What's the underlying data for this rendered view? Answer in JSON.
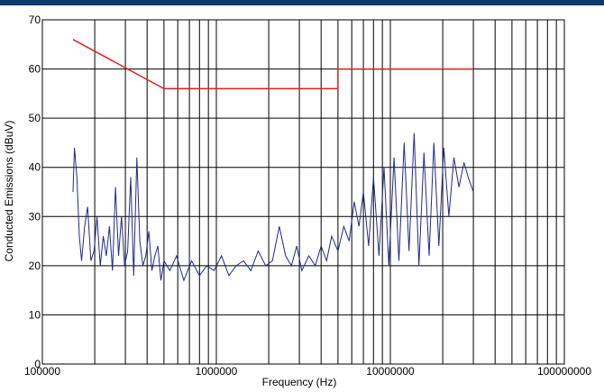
{
  "chart_data": {
    "type": "line",
    "title": "",
    "xlabel": "Frequency (Hz)",
    "ylabel": "Conducted Emissions (dBuV)",
    "x_scale": "log",
    "xlim": [
      100000,
      100000000
    ],
    "ylim": [
      0,
      70
    ],
    "grid": true,
    "x_tick_labels": [
      "100000",
      "1000000",
      "10000000",
      "100000000"
    ],
    "y_tick_labels": [
      "0",
      "10",
      "20",
      "30",
      "40",
      "50",
      "60",
      "70"
    ],
    "y_ticks": [
      0,
      10,
      20,
      30,
      40,
      50,
      60,
      70
    ],
    "colors": {
      "limit": "#e02020",
      "emissions": "#1f2a8a",
      "grid": "#000000",
      "header": "#0d3a6e"
    },
    "series": [
      {
        "name": "",
        "role": "limit",
        "x": [
          150000,
          500000,
          500000,
          5000000,
          5000000,
          30000000
        ],
        "y": [
          66,
          56,
          56,
          56,
          60,
          60
        ]
      },
      {
        "name": "",
        "role": "emissions",
        "x": [
          150000,
          153000,
          158000,
          163000,
          168000,
          175000,
          182000,
          190000,
          198000,
          206000,
          215000,
          224000,
          233000,
          243000,
          253000,
          263000,
          274000,
          285000,
          297000,
          309000,
          322000,
          335000,
          349000,
          363000,
          378000,
          393000,
          409000,
          426000,
          443000,
          461000,
          480000,
          500000,
          540000,
          590000,
          650000,
          720000,
          800000,
          880000,
          970000,
          1070000,
          1180000,
          1300000,
          1430000,
          1580000,
          1740000,
          1920000,
          2100000,
          2300000,
          2500000,
          2700000,
          2900000,
          3100000,
          3400000,
          3700000,
          4000000,
          4300000,
          4600000,
          5000000,
          5400000,
          5800000,
          6200000,
          6600000,
          7000000,
          7500000,
          8000000,
          8600000,
          9200000,
          9800000,
          10500000,
          11200000,
          12000000,
          12800000,
          13700000,
          14600000,
          15600000,
          16700000,
          17800000,
          19000000,
          20300000,
          21700000,
          23200000,
          24800000,
          26500000,
          28000000,
          30000000
        ],
        "y": [
          35,
          44,
          38,
          26,
          21,
          28,
          32,
          21,
          23,
          30,
          20,
          26,
          22,
          28,
          19,
          36,
          22,
          30,
          20,
          23,
          38,
          18,
          42,
          25,
          20,
          22,
          27,
          19,
          22,
          24,
          17,
          21,
          19,
          22,
          17,
          21,
          18,
          20,
          19,
          22,
          18,
          20,
          21,
          19,
          23,
          20,
          21,
          28,
          22,
          20,
          24,
          19,
          22,
          20,
          24,
          21,
          26,
          23,
          28,
          25,
          33,
          28,
          35,
          24,
          38,
          22,
          40,
          20,
          42,
          21,
          45,
          23,
          47,
          20,
          43,
          22,
          45,
          24,
          44,
          30,
          42,
          36,
          41,
          38,
          35
        ]
      }
    ]
  }
}
